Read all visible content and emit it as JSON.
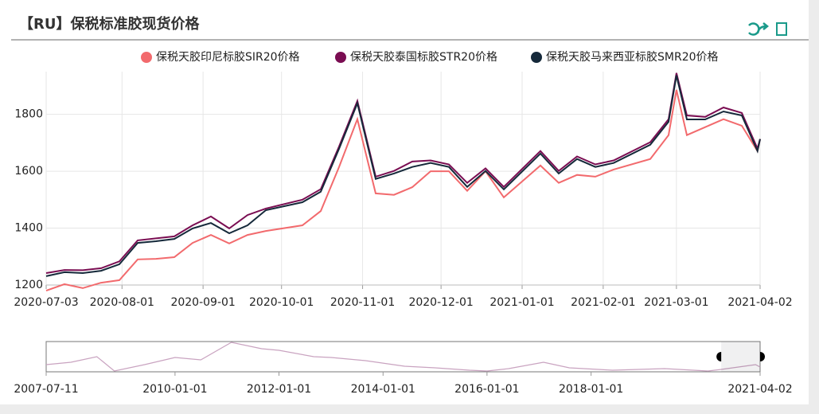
{
  "title": "【RU】保税标准胶现货价格",
  "chart_data": [
    {
      "type": "line",
      "x": [
        "2020-07-03",
        "2020-07-10",
        "2020-07-17",
        "2020-07-24",
        "2020-07-31",
        "2020-08-07",
        "2020-08-14",
        "2020-08-21",
        "2020-08-28",
        "2020-09-04",
        "2020-09-11",
        "2020-09-18",
        "2020-09-25",
        "2020-10-09",
        "2020-10-16",
        "2020-10-23",
        "2020-10-30",
        "2020-11-06",
        "2020-11-13",
        "2020-11-20",
        "2020-11-27",
        "2020-12-04",
        "2020-12-11",
        "2020-12-18",
        "2020-12-25",
        "2021-01-08",
        "2021-01-15",
        "2021-01-22",
        "2021-01-29",
        "2021-02-05",
        "2021-02-19",
        "2021-02-26",
        "2021-03-01",
        "2021-03-05",
        "2021-03-12",
        "2021-03-19",
        "2021-03-26",
        "2021-04-01",
        "2021-04-02"
      ],
      "series": [
        {
          "name": "保税天胶印尼标胶SIR20价格",
          "color": "#f26a6d",
          "values": [
            1180,
            1203,
            1189,
            1208,
            1217,
            1290,
            1292,
            1298,
            1348,
            1376,
            1346,
            1376,
            1390,
            1410,
            1460,
            1615,
            1783,
            1522,
            1517,
            1544,
            1600,
            1600,
            1531,
            1600,
            1508,
            1620,
            1559,
            1587,
            1581,
            1606,
            1643,
            1727,
            1886,
            1727,
            1755,
            1783,
            1760,
            1671,
            1713
          ]
        },
        {
          "name": "保税天胶泰国标胶STR20价格",
          "color": "#7a0d52",
          "values": [
            1242,
            1253,
            1252,
            1259,
            1283,
            1357,
            1364,
            1371,
            1410,
            1441,
            1399,
            1446,
            1469,
            1500,
            1537,
            1687,
            1847,
            1581,
            1601,
            1634,
            1638,
            1624,
            1559,
            1610,
            1545,
            1671,
            1601,
            1652,
            1624,
            1638,
            1702,
            1783,
            1945,
            1796,
            1791,
            1824,
            1805,
            1680,
            1713
          ]
        },
        {
          "name": "保税天胶马来西亚标胶SMR20价格",
          "color": "#15293a",
          "values": [
            1231,
            1245,
            1242,
            1250,
            1273,
            1348,
            1354,
            1362,
            1399,
            1418,
            1382,
            1410,
            1463,
            1491,
            1528,
            1679,
            1839,
            1573,
            1592,
            1615,
            1629,
            1615,
            1545,
            1601,
            1536,
            1662,
            1592,
            1643,
            1615,
            1629,
            1693,
            1774,
            1937,
            1782,
            1782,
            1810,
            1796,
            1671,
            1713
          ]
        }
      ],
      "xlim": [
        "2020-07-03",
        "2021-04-02"
      ],
      "xticks": [
        "2020-07-03",
        "2020-08-01",
        "2020-09-01",
        "2020-10-01",
        "2020-11-01",
        "2020-12-01",
        "2021-01-01",
        "2021-02-01",
        "2021-03-01",
        "2021-04-02"
      ],
      "ylim": [
        1200,
        1950
      ],
      "yticks": [
        1200,
        1400,
        1600,
        1800
      ],
      "grid": true,
      "legend": "top"
    },
    {
      "type": "line",
      "x": [
        "2007-07-11",
        "2008-01-01",
        "2008-07-01",
        "2008-11-01",
        "2009-06-01",
        "2010-01-01",
        "2010-07-01",
        "2011-02-01",
        "2011-09-01",
        "2012-01-01",
        "2012-09-01",
        "2013-01-01",
        "2013-09-01",
        "2014-06-01",
        "2015-01-01",
        "2015-09-01",
        "2016-01-01",
        "2016-06-01",
        "2017-02-01",
        "2017-08-01",
        "2018-06-01",
        "2019-06-01",
        "2020-04-01",
        "2020-07-03",
        "2020-11-01",
        "2021-03-01",
        "2021-04-02"
      ],
      "values": [
        2184,
        2580,
        3500,
        1130,
        2184,
        3370,
        2970,
        5870,
        4820,
        4550,
        3500,
        3370,
        2840,
        1920,
        1660,
        1260,
        1130,
        1530,
        2580,
        1660,
        1260,
        1530,
        1130,
        1400,
        1790,
        2180,
        1790
      ],
      "color": "#c9a3c0",
      "xlim": [
        "2007-07-11",
        "2021-04-02"
      ],
      "xticks": [
        "2007-07-11",
        "2010-01-01",
        "2012-01-01",
        "2014-01-01",
        "2016-01-01",
        "2018-01-01",
        "2021-04-02"
      ],
      "ylim": [
        1000,
        6000
      ]
    }
  ]
}
